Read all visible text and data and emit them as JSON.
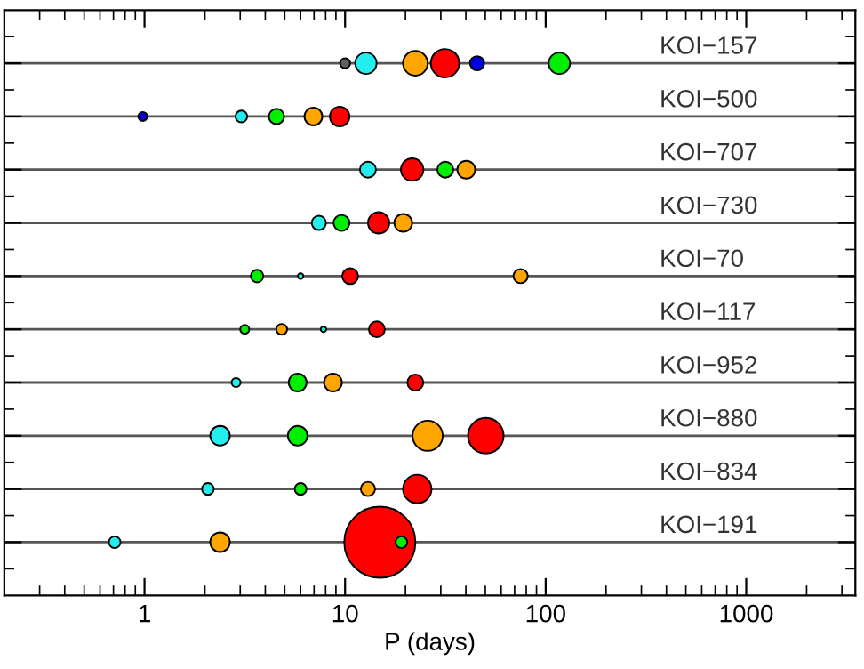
{
  "chart_data": {
    "type": "bubble",
    "orientation": "horizontal",
    "xlabel": "P (days)",
    "log": "x",
    "xlim": [
      0.2,
      3500
    ],
    "xticks": [
      1,
      10,
      100,
      1000
    ],
    "tick_labels": "x",
    "grid": "y",
    "legend": false,
    "categories": [
      "KOI−157",
      "KOI−500",
      "KOI−707",
      "KOI−730",
      "KOI−70",
      "KOI−117",
      "KOI−952",
      "KOI−880",
      "KOI−834",
      "KOI−191"
    ],
    "series": [
      {
        "values": [
          10.0,
          0.98,
          13.0,
          7.4,
          3.64,
          3.16,
          2.86,
          2.38,
          2.07,
          0.71
        ],
        "sizes": [
          0.02,
          0.016,
          0.05,
          0.04,
          0.031,
          0.016,
          0.016,
          0.076,
          0.027,
          0.027
        ],
        "colors": [
          "#606060",
          "#0000dd",
          "#22eeee",
          "#22eeee",
          "#00ee00",
          "#00ee00",
          "#22eeee",
          "#22eeee",
          "#22eeee",
          "#22eeee"
        ]
      },
      {
        "values": [
          12.7,
          3.04,
          21.6,
          9.6,
          6.0,
          4.83,
          5.8,
          5.8,
          6.0,
          2.38
        ],
        "sizes": [
          0.09,
          0.027,
          0.1,
          0.05,
          0.006,
          0.023,
          0.063,
          0.076,
          0.027,
          0.076
        ],
        "colors": [
          "#22eeee",
          "#22eeee",
          "#ff0000",
          "#00ee00",
          "#22eeee",
          "#ffa500",
          "#00ee00",
          "#00ee00",
          "#00ee00",
          "#ffa500"
        ]
      },
      {
        "values": [
          22.4,
          4.55,
          31.6,
          14.7,
          10.6,
          7.8,
          8.7,
          25.8,
          13.0,
          14.9
        ],
        "sizes": [
          0.12,
          0.046,
          0.05,
          0.09,
          0.05,
          0.006,
          0.063,
          0.18,
          0.04,
          1
        ],
        "colors": [
          "#ffa500",
          "#00ee00",
          "#00ee00",
          "#ff0000",
          "#ff0000",
          "#22eeee",
          "#ffa500",
          "#ffa500",
          "#ffa500",
          "#ff0000"
        ]
      },
      {
        "values": [
          31.5,
          6.95,
          40.2,
          19.5,
          75,
          14.4,
          22.4,
          50.3,
          22.9,
          19.1
        ],
        "sizes": [
          0.16,
          0.063,
          0.063,
          0.063,
          0.04,
          0.05,
          0.05,
          0.25,
          0.16,
          0.027
        ],
        "colors": [
          "#ff0000",
          "#ffa500",
          "#ffa500",
          "#ffa500",
          "#ffa500",
          "#ff0000",
          "#ff0000",
          "#ff0000",
          "#ff0000",
          "#00ee00"
        ]
      },
      {
        "values": [
          45.5,
          9.4,
          null,
          null,
          null,
          null,
          null,
          null,
          null,
          null
        ],
        "sizes": [
          0.04,
          0.076,
          null,
          null,
          null,
          null,
          null,
          null,
          null,
          null
        ],
        "colors": [
          "#0000dd",
          "#ff0000",
          null,
          null,
          null,
          null,
          null,
          null,
          null,
          null
        ]
      },
      {
        "values": [
          117,
          null,
          null,
          null,
          null,
          null,
          null,
          null,
          null,
          null
        ],
        "sizes": [
          0.09,
          null,
          null,
          null,
          null,
          null,
          null,
          null,
          null,
          null
        ],
        "colors": [
          "#00ee00",
          null,
          null,
          null,
          null,
          null,
          null,
          null,
          null,
          null
        ]
      }
    ]
  }
}
